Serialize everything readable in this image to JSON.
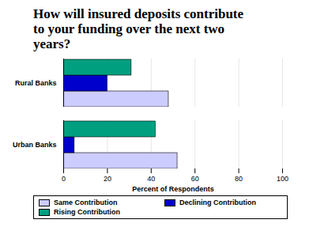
{
  "chart_data": {
    "type": "bar",
    "orientation": "horizontal",
    "title": "How will insured deposits contribute to your funding over the next two years?",
    "categories": [
      "Rural Banks",
      "Urban Banks"
    ],
    "series": [
      {
        "name": "Same Contribution",
        "color": "#ccccff",
        "values": [
          48,
          52
        ]
      },
      {
        "name": "Declining Contribution",
        "color": "#0000cc",
        "values": [
          20,
          5
        ]
      },
      {
        "name": "Rising Contribution",
        "color": "#009f80",
        "values": [
          31,
          42
        ]
      }
    ],
    "xlabel": "Percent of Respondents",
    "xlim": [
      0,
      100
    ],
    "xticks": [
      0,
      20,
      40,
      60,
      80,
      100
    ],
    "grid": true,
    "legend": "bottom"
  }
}
